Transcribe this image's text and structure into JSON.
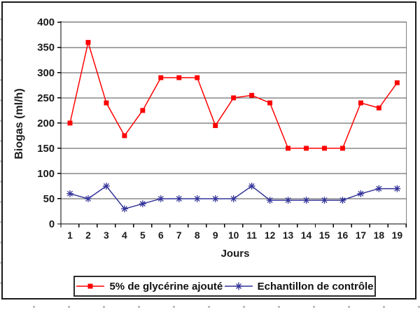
{
  "chart_data": {
    "type": "line",
    "title": "",
    "xlabel": "Jours",
    "ylabel": "Biogas (ml/h)",
    "categories": [
      "1",
      "2",
      "3",
      "4",
      "5",
      "6",
      "7",
      "8",
      "9",
      "10",
      "11",
      "12",
      "13",
      "14",
      "15",
      "16",
      "17",
      "18",
      "19"
    ],
    "series": [
      {
        "name": "5% de glycérine ajouté",
        "color": "#ff0000",
        "marker": "square",
        "values": [
          200,
          360,
          240,
          175,
          225,
          290,
          290,
          290,
          195,
          250,
          255,
          240,
          150,
          150,
          150,
          150,
          240,
          230,
          280
        ]
      },
      {
        "name": "Echantillon de contrôle",
        "color": "#333399",
        "marker": "asterisk",
        "values": [
          60,
          50,
          75,
          30,
          40,
          50,
          50,
          50,
          50,
          50,
          75,
          47,
          47,
          47,
          47,
          47,
          60,
          70,
          70
        ]
      }
    ],
    "ylim": [
      0,
      400
    ],
    "ytick_step": 50,
    "grid": "horizontal",
    "legend_position": "bottom"
  },
  "colors": {
    "axis": "#000000",
    "gridline": "#4d4d4d",
    "plot_border": "#808080",
    "tick_label": "#1a1a1a",
    "frame_border": "#1a1a1a"
  }
}
